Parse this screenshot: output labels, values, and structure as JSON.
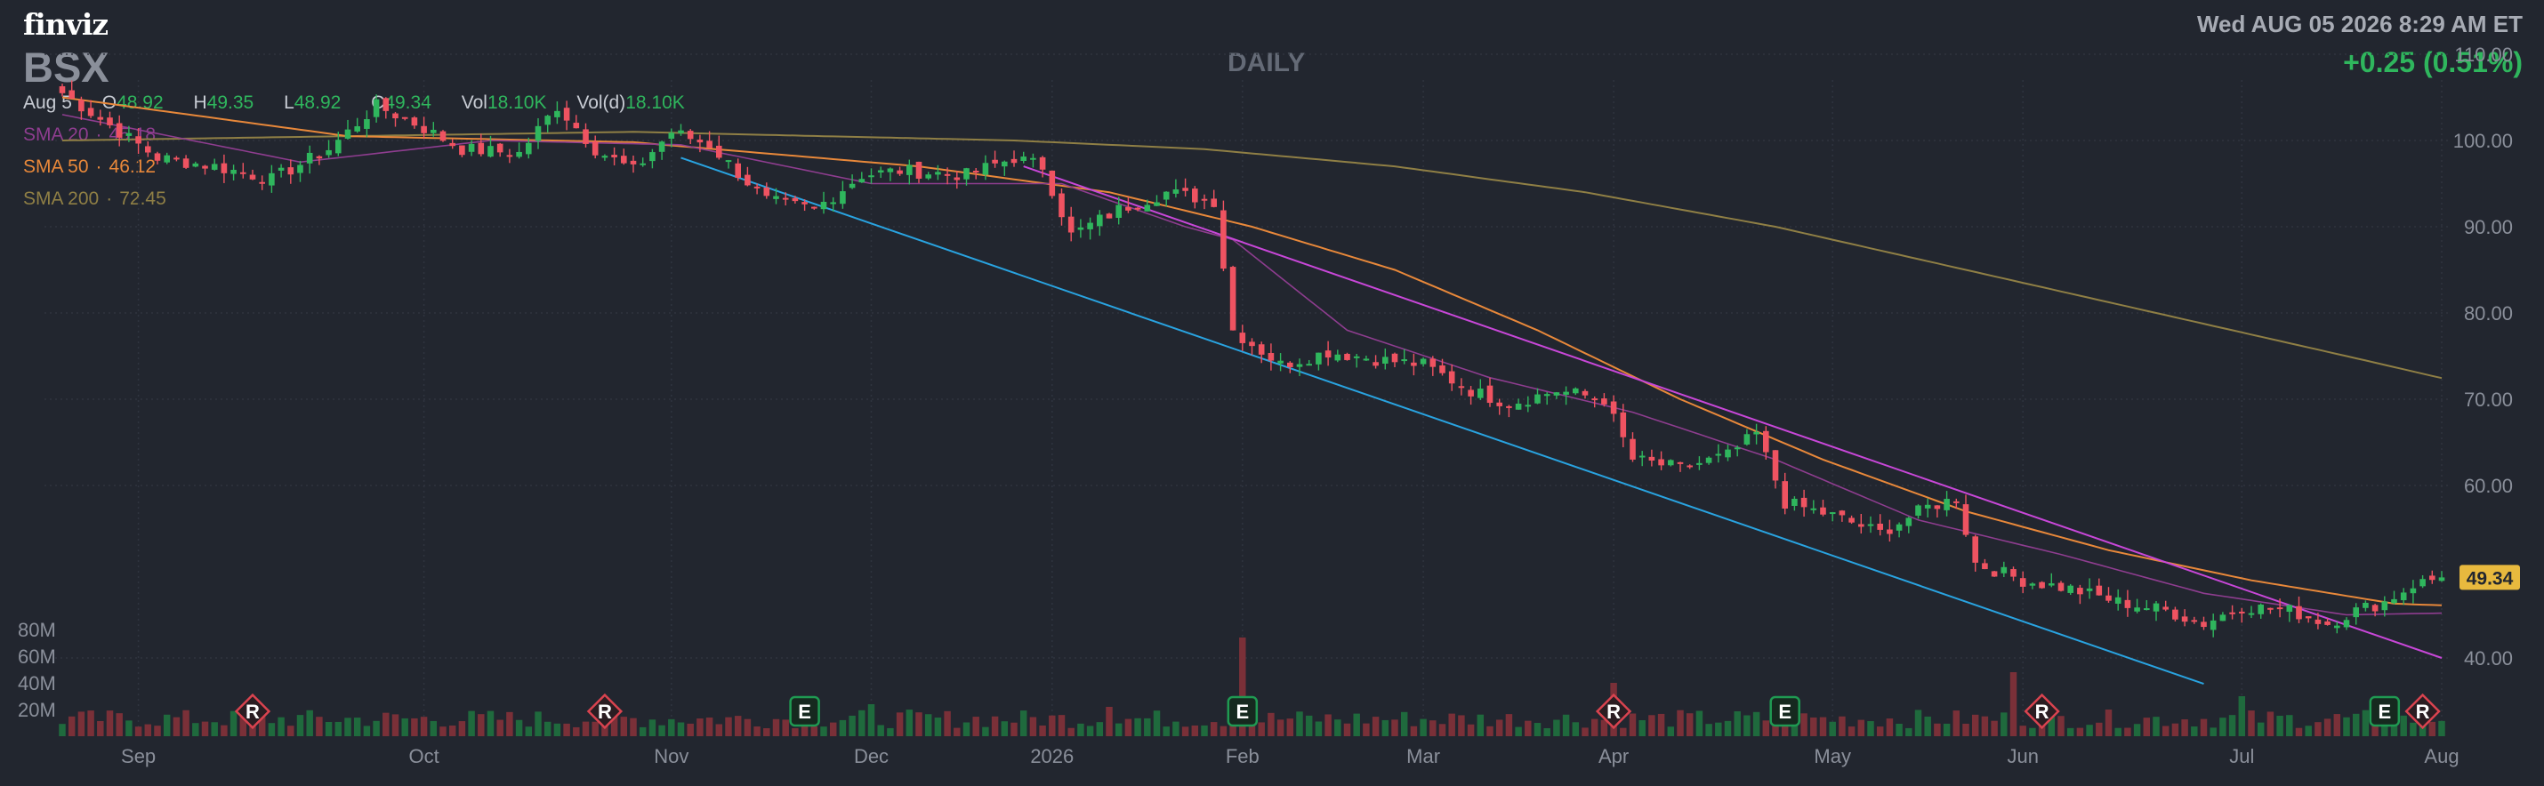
{
  "header": {
    "logo": "finviz",
    "ticker": "BSX",
    "period": "DAILY",
    "datetime": "Wed AUG 05 2026 8:29 AM ET",
    "change": "+0.25 (0.51%)"
  },
  "ohlc": {
    "date": "Aug 5",
    "o_label": "O",
    "o": "48.92",
    "h_label": "H",
    "h": "49.35",
    "l_label": "L",
    "l": "48.92",
    "c_label": "C",
    "c": "49.34",
    "vol_label": "Vol",
    "vol": "18.10K",
    "vold_label": "Vol(d)",
    "vold": "18.10K"
  },
  "legend": [
    {
      "label": "SMA 20",
      "value": "45.18",
      "color": "#8e3d8f"
    },
    {
      "label": "SMA 50",
      "value": "46.12",
      "color": "#e8883a"
    },
    {
      "label": "SMA 200",
      "value": "72.45",
      "color": "#8f7f45"
    }
  ],
  "colors": {
    "background": "#22262f",
    "up": "#2fb65d",
    "down": "#ef5361",
    "up_volume": "#1f6a3d",
    "down_volume": "#7a3038",
    "grid": "#2f343f",
    "trendline_upper": "#c847d8",
    "trendline_lower": "#29a3e0",
    "last_price_bg": "#e8b93e"
  },
  "chart_data": {
    "type": "candlestick",
    "ylim": [
      35,
      110
    ],
    "y_ticks": [
      "110.00",
      "100.00",
      "90.00",
      "80.00",
      "70.00",
      "60.00",
      "40.00"
    ],
    "volume_ticks": [
      "80M",
      "60M",
      "40M",
      "20M"
    ],
    "x_labels": [
      "Sep",
      "Oct",
      "Nov",
      "Dec",
      "2026",
      "Feb",
      "Mar",
      "Apr",
      "May",
      "Jun",
      "Jul",
      "Aug"
    ],
    "last_price": "49.34",
    "events": [
      "R",
      "R",
      "E",
      "E",
      "R",
      "E",
      "R",
      "E",
      "R"
    ],
    "price_anchors": [
      [
        0,
        105.5
      ],
      [
        6,
        101
      ],
      [
        10,
        98
      ],
      [
        16,
        97
      ],
      [
        22,
        95.5
      ],
      [
        28,
        99
      ],
      [
        33,
        104
      ],
      [
        37,
        102
      ],
      [
        42,
        99
      ],
      [
        48,
        98.5
      ],
      [
        52,
        104
      ],
      [
        56,
        99
      ],
      [
        60,
        96.5
      ],
      [
        64,
        101
      ],
      [
        68,
        99.5
      ],
      [
        74,
        93
      ],
      [
        79,
        92
      ],
      [
        84,
        96
      ],
      [
        88,
        96.5
      ],
      [
        95,
        96
      ],
      [
        100,
        98
      ],
      [
        103,
        97
      ],
      [
        106,
        89
      ],
      [
        111,
        92
      ],
      [
        116,
        94
      ],
      [
        121,
        93
      ],
      [
        123,
        78
      ],
      [
        128,
        74
      ],
      [
        133,
        75.5
      ],
      [
        139,
        74.5
      ],
      [
        143,
        74
      ],
      [
        148,
        71
      ],
      [
        152,
        69.5
      ],
      [
        157,
        71
      ],
      [
        162,
        70
      ],
      [
        165,
        63
      ],
      [
        170,
        62
      ],
      [
        175,
        63.5
      ],
      [
        178,
        66
      ],
      [
        181,
        58
      ],
      [
        186,
        56.5
      ],
      [
        191,
        54.5
      ],
      [
        196,
        57.5
      ],
      [
        199,
        58.5
      ],
      [
        201,
        51
      ],
      [
        206,
        49
      ],
      [
        211,
        48
      ],
      [
        216,
        46.5
      ],
      [
        221,
        45.5
      ],
      [
        225,
        44
      ],
      [
        229,
        46
      ],
      [
        234,
        45.5
      ],
      [
        238,
        44
      ],
      [
        241,
        45.5
      ],
      [
        244,
        46.5
      ],
      [
        247,
        48.5
      ],
      [
        250,
        49.34
      ]
    ],
    "sma20_anchors": [
      [
        0,
        103
      ],
      [
        25,
        97.5
      ],
      [
        45,
        100
      ],
      [
        65,
        99.5
      ],
      [
        85,
        95
      ],
      [
        105,
        95
      ],
      [
        118,
        90
      ],
      [
        123,
        88.5
      ],
      [
        135,
        78
      ],
      [
        150,
        72.5
      ],
      [
        165,
        68.5
      ],
      [
        180,
        63
      ],
      [
        195,
        56
      ],
      [
        210,
        52
      ],
      [
        225,
        47.5
      ],
      [
        240,
        45
      ],
      [
        250,
        45.2
      ]
    ],
    "sma50_anchors": [
      [
        0,
        105
      ],
      [
        30,
        100.5
      ],
      [
        60,
        99.8
      ],
      [
        90,
        97
      ],
      [
        110,
        94
      ],
      [
        125,
        90
      ],
      [
        140,
        85
      ],
      [
        155,
        78
      ],
      [
        170,
        70
      ],
      [
        185,
        63
      ],
      [
        200,
        57
      ],
      [
        215,
        52.5
      ],
      [
        230,
        49
      ],
      [
        245,
        46.3
      ],
      [
        250,
        46.1
      ]
    ],
    "sma200_anchors": [
      [
        0,
        100
      ],
      [
        60,
        101
      ],
      [
        100,
        100
      ],
      [
        120,
        99
      ],
      [
        140,
        97
      ],
      [
        160,
        94
      ],
      [
        180,
        90
      ],
      [
        200,
        85
      ],
      [
        220,
        80
      ],
      [
        240,
        75
      ],
      [
        250,
        72.45
      ]
    ],
    "trendline_upper": [
      [
        101,
        97
      ],
      [
        250,
        40
      ]
    ],
    "trendline_lower": [
      [
        65,
        98
      ],
      [
        225,
        37
      ]
    ]
  }
}
